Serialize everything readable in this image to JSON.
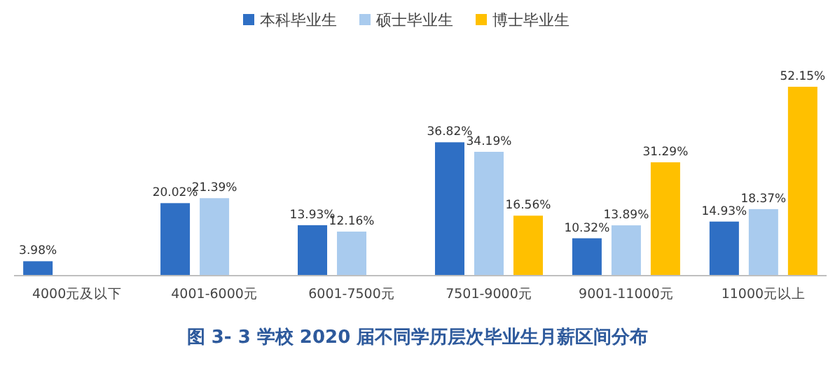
{
  "chart_data": {
    "type": "bar",
    "title": "图 3- 3   学校 2020 届不同学历层次毕业生月薪区间分布",
    "categories": [
      "4000元及以下",
      "4001-6000元",
      "6001-7500元",
      "7501-9000元",
      "9001-11000元",
      "11000元以上"
    ],
    "series": [
      {
        "name": "本科毕业生",
        "color": "#2f6fc4",
        "values": [
          3.98,
          20.02,
          13.93,
          36.82,
          10.32,
          14.93
        ],
        "value_labels": [
          "3.98%",
          "20.02%",
          "13.93%",
          "36.82%",
          "10.32%",
          "14.93%"
        ]
      },
      {
        "name": "硕士毕业生",
        "color": "#a9cbee",
        "values": [
          null,
          21.39,
          12.16,
          34.19,
          13.89,
          18.37
        ],
        "value_labels": [
          null,
          "21.39%",
          "12.16%",
          "34.19%",
          "13.89%",
          "18.37%"
        ]
      },
      {
        "name": "博士毕业生",
        "color": "#ffc000",
        "values": [
          null,
          null,
          null,
          16.56,
          31.29,
          52.15
        ],
        "value_labels": [
          null,
          null,
          null,
          "16.56%",
          "31.29%",
          "52.15%"
        ]
      }
    ],
    "legend": "top"
  }
}
